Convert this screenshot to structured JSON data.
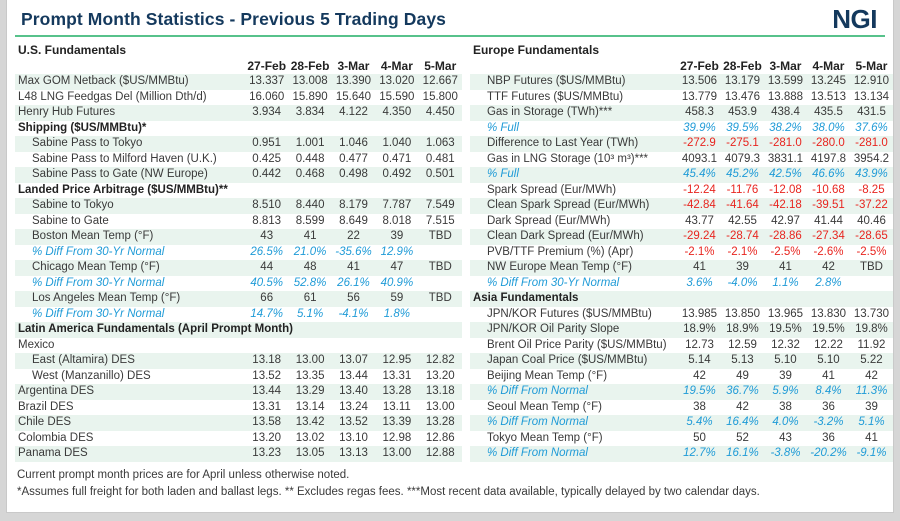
{
  "title": "Prompt Month Statistics - Previous 5 Trading Days",
  "logo": {
    "text": "NGI"
  },
  "dates": [
    "27-Feb",
    "28-Feb",
    "3-Mar",
    "4-Mar",
    "5-Mar"
  ],
  "colors": {
    "brand_navy": "#14395D",
    "rule_green": "#57C28B",
    "stripe_green": "#E9F4EE",
    "accent_blue": "#1F9BD7",
    "negative_red": "#E8251F"
  },
  "left": {
    "header": "U.S. Fundamentals",
    "rows": [
      {
        "type": "data",
        "label": "Max GOM Netback ($US/MMBtu)",
        "values": [
          "13.337",
          "13.008",
          "13.390",
          "13.020",
          "12.667"
        ]
      },
      {
        "type": "data",
        "label": "L48 LNG Feedgas Del (Million Dth/d)",
        "values": [
          "16.060",
          "15.890",
          "15.640",
          "15.590",
          "15.800"
        ]
      },
      {
        "type": "data",
        "label": "Henry Hub Futures",
        "values": [
          "3.934",
          "3.834",
          "4.122",
          "4.350",
          "4.450"
        ]
      },
      {
        "type": "section",
        "label": "Shipping ($US/MMBtu)*"
      },
      {
        "type": "data",
        "label": "Sabine Pass to Tokyo",
        "indent": true,
        "values": [
          "0.951",
          "1.001",
          "1.046",
          "1.040",
          "1.063"
        ]
      },
      {
        "type": "data",
        "label": "Sabine Pass to Milford Haven (U.K.)",
        "indent": true,
        "values": [
          "0.425",
          "0.448",
          "0.477",
          "0.471",
          "0.481"
        ]
      },
      {
        "type": "data",
        "label": "Sabine Pass to Gate (NW Europe)",
        "indent": true,
        "values": [
          "0.442",
          "0.468",
          "0.498",
          "0.492",
          "0.501"
        ]
      },
      {
        "type": "section",
        "label": "Landed Price Arbitrage ($US/MMBtu)**"
      },
      {
        "type": "data",
        "label": "Sabine to Tokyo",
        "indent": true,
        "values": [
          "8.510",
          "8.440",
          "8.179",
          "7.787",
          "7.549"
        ]
      },
      {
        "type": "data",
        "label": "Sabine to Gate",
        "indent": true,
        "values": [
          "8.813",
          "8.599",
          "8.649",
          "8.018",
          "7.515"
        ]
      },
      {
        "type": "data",
        "label": "Boston Mean Temp (°F)",
        "indent": true,
        "values": [
          "43",
          "41",
          "22",
          "39",
          "TBD"
        ]
      },
      {
        "type": "data",
        "label": "% Diff From 30-Yr Normal",
        "indent": true,
        "style": "blue",
        "values": [
          "26.5%",
          "21.0%",
          "-35.6%",
          "12.9%",
          ""
        ]
      },
      {
        "type": "data",
        "label": "Chicago Mean Temp (°F)",
        "indent": true,
        "values": [
          "44",
          "48",
          "41",
          "47",
          "TBD"
        ]
      },
      {
        "type": "data",
        "label": "% Diff From 30-Yr Normal",
        "indent": true,
        "style": "blue",
        "values": [
          "40.5%",
          "52.8%",
          "26.1%",
          "40.9%",
          ""
        ]
      },
      {
        "type": "data",
        "label": "Los Angeles Mean Temp (°F)",
        "indent": true,
        "values": [
          "66",
          "61",
          "56",
          "59",
          "TBD"
        ]
      },
      {
        "type": "data",
        "label": "% Diff From 30-Yr Normal",
        "indent": true,
        "style": "blue",
        "values": [
          "14.7%",
          "5.1%",
          "-4.1%",
          "1.8%",
          ""
        ]
      },
      {
        "type": "section",
        "label": "Latin America Fundamentals (April Prompt Month)"
      },
      {
        "type": "plain",
        "label": "Mexico"
      },
      {
        "type": "data",
        "label": "East (Altamira) DES",
        "indent": true,
        "values": [
          "13.18",
          "13.00",
          "13.07",
          "12.95",
          "12.82"
        ]
      },
      {
        "type": "data",
        "label": "West (Manzanillo) DES",
        "indent": true,
        "values": [
          "13.52",
          "13.35",
          "13.44",
          "13.31",
          "13.20"
        ]
      },
      {
        "type": "data",
        "label": "Argentina DES",
        "values": [
          "13.44",
          "13.29",
          "13.40",
          "13.28",
          "13.18"
        ]
      },
      {
        "type": "data",
        "label": "Brazil DES",
        "values": [
          "13.31",
          "13.14",
          "13.24",
          "13.11",
          "13.00"
        ]
      },
      {
        "type": "data",
        "label": "Chile DES",
        "values": [
          "13.58",
          "13.42",
          "13.52",
          "13.39",
          "13.28"
        ]
      },
      {
        "type": "data",
        "label": "Colombia DES",
        "values": [
          "13.20",
          "13.02",
          "13.10",
          "12.98",
          "12.86"
        ]
      },
      {
        "type": "data",
        "label": "Panama DES",
        "values": [
          "13.23",
          "13.05",
          "13.13",
          "13.00",
          "12.88"
        ]
      }
    ]
  },
  "right": {
    "header": "Europe Fundamentals",
    "rows": [
      {
        "type": "data",
        "label": "NBP Futures ($US/MMBtu)",
        "indent": true,
        "values": [
          "13.506",
          "13.179",
          "13.599",
          "13.245",
          "12.910"
        ]
      },
      {
        "type": "data",
        "label": "TTF Futures ($US/MMBtu)",
        "indent": true,
        "values": [
          "13.779",
          "13.476",
          "13.888",
          "13.513",
          "13.134"
        ]
      },
      {
        "type": "data",
        "label": "Gas in Storage (TWh)***",
        "indent": true,
        "values": [
          "458.3",
          "453.9",
          "438.4",
          "435.5",
          "431.5"
        ]
      },
      {
        "type": "data",
        "label": "% Full",
        "indent": true,
        "style": "blue",
        "values": [
          "39.9%",
          "39.5%",
          "38.2%",
          "38.0%",
          "37.6%"
        ]
      },
      {
        "type": "data",
        "label": "Difference to Last Year (TWh)",
        "indent": true,
        "style": "red",
        "values": [
          "-272.9",
          "-275.1",
          "-281.0",
          "-280.0",
          "-281.0"
        ]
      },
      {
        "type": "data",
        "label": "Gas in LNG Storage (10³ m³)***",
        "indent": true,
        "values": [
          "4093.1",
          "4079.3",
          "3831.1",
          "4197.8",
          "3954.2"
        ]
      },
      {
        "type": "data",
        "label": "% Full",
        "indent": true,
        "style": "blue",
        "values": [
          "45.4%",
          "45.2%",
          "42.5%",
          "46.6%",
          "43.9%"
        ]
      },
      {
        "type": "data",
        "label": "Spark Spread (Eur/MWh)",
        "indent": true,
        "style": "red",
        "values": [
          "-12.24",
          "-11.76",
          "-12.08",
          "-10.68",
          "-8.25"
        ]
      },
      {
        "type": "data",
        "label": "Clean Spark Spread (Eur/MWh)",
        "indent": true,
        "style": "red",
        "values": [
          "-42.84",
          "-41.64",
          "-42.18",
          "-39.51",
          "-37.22"
        ]
      },
      {
        "type": "data",
        "label": "Dark Spread (Eur/MWh)",
        "indent": true,
        "values": [
          "43.77",
          "42.55",
          "42.97",
          "41.44",
          "40.46"
        ]
      },
      {
        "type": "data",
        "label": "Clean Dark Spread (Eur/MWh)",
        "indent": true,
        "style": "red",
        "values": [
          "-29.24",
          "-28.74",
          "-28.86",
          "-27.34",
          "-28.65"
        ]
      },
      {
        "type": "data",
        "label": "PVB/TTF Premium (%) (Apr)",
        "indent": true,
        "style": "red",
        "values": [
          "-2.1%",
          "-2.1%",
          "-2.5%",
          "-2.6%",
          "-2.5%"
        ]
      },
      {
        "type": "data",
        "label": "NW Europe Mean Temp (°F)",
        "indent": true,
        "values": [
          "41",
          "39",
          "41",
          "42",
          "TBD"
        ]
      },
      {
        "type": "data",
        "label": "% Diff From 30-Yr Normal",
        "indent": true,
        "style": "blue",
        "values": [
          "3.6%",
          "-4.0%",
          "1.1%",
          "2.8%",
          ""
        ]
      },
      {
        "type": "section",
        "label": "Asia Fundamentals"
      },
      {
        "type": "data",
        "label": "JPN/KOR Futures ($US/MMBtu)",
        "indent": true,
        "values": [
          "13.985",
          "13.850",
          "13.965",
          "13.830",
          "13.730"
        ]
      },
      {
        "type": "data",
        "label": "JPN/KOR Oil Parity Slope",
        "indent": true,
        "values": [
          "18.9%",
          "18.9%",
          "19.5%",
          "19.5%",
          "19.8%"
        ]
      },
      {
        "type": "data",
        "label": "Brent Oil Price Parity ($US/MMBtu)",
        "indent": true,
        "values": [
          "12.73",
          "12.59",
          "12.32",
          "12.22",
          "11.92"
        ]
      },
      {
        "type": "data",
        "label": "Japan Coal Price ($US/MMBtu)",
        "indent": true,
        "values": [
          "5.14",
          "5.13",
          "5.10",
          "5.10",
          "5.22"
        ]
      },
      {
        "type": "data",
        "label": "Beijing Mean Temp (°F)",
        "indent": true,
        "values": [
          "42",
          "49",
          "39",
          "41",
          "42"
        ]
      },
      {
        "type": "data",
        "label": "% Diff From Normal",
        "indent": true,
        "style": "blue",
        "values": [
          "19.5%",
          "36.7%",
          "5.9%",
          "8.4%",
          "11.3%"
        ]
      },
      {
        "type": "data",
        "label": "Seoul Mean Temp (°F)",
        "indent": true,
        "values": [
          "38",
          "42",
          "38",
          "36",
          "39"
        ]
      },
      {
        "type": "data",
        "label": "% Diff From Normal",
        "indent": true,
        "style": "blue",
        "values": [
          "5.4%",
          "16.4%",
          "4.0%",
          "-3.2%",
          "5.1%"
        ]
      },
      {
        "type": "data",
        "label": "Tokyo Mean Temp (°F)",
        "indent": true,
        "values": [
          "50",
          "52",
          "43",
          "36",
          "41"
        ]
      },
      {
        "type": "data",
        "label": "% Diff From Normal",
        "indent": true,
        "style": "blue",
        "values": [
          "12.7%",
          "16.1%",
          "-3.8%",
          "-20.2%",
          "-9.1%"
        ]
      }
    ]
  },
  "footnotes": [
    "Current prompt month prices are for April unless otherwise noted.",
    "*Assumes full freight for both laden and ballast legs. ** Excludes regas fees. ***Most recent data available, typically delayed by two calendar days."
  ]
}
